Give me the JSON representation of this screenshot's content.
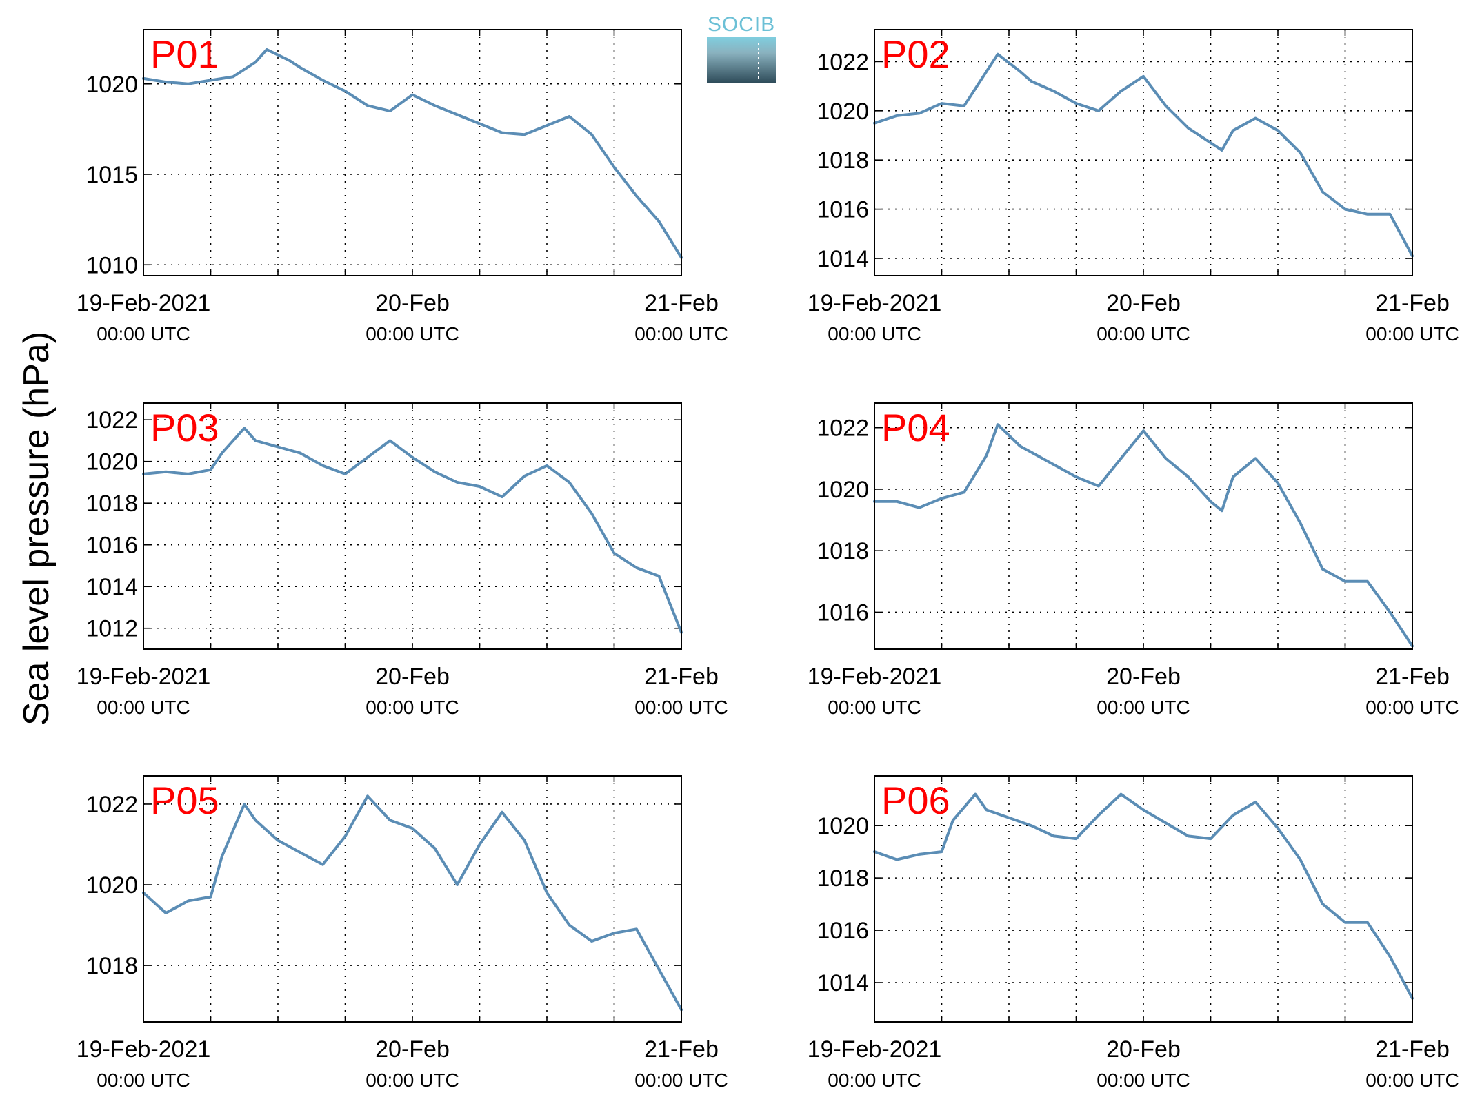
{
  "ylabel": "Sea level pressure (hPa)",
  "logo": {
    "text": "SOCIB"
  },
  "x_axis": {
    "ticks": [
      {
        "date": "19-Feb-2021",
        "time": "00:00 UTC"
      },
      {
        "date": "20-Feb",
        "time": "00:00 UTC"
      },
      {
        "date": "21-Feb",
        "time": "00:00 UTC"
      }
    ]
  },
  "colors": {
    "line": "#5b8db5",
    "title": "#ff0000"
  },
  "chart_data": [
    {
      "type": "line",
      "title": "P01",
      "ylim": [
        1009.4,
        1023.0
      ],
      "yticks": [
        1010,
        1015,
        1020
      ],
      "xlim": [
        "2021-02-19T00:00",
        "2021-02-21T00:00"
      ],
      "grid": true,
      "x": [
        "2021-02-19T00:00",
        "2021-02-19T02:00",
        "2021-02-19T04:00",
        "2021-02-19T06:00",
        "2021-02-19T08:00",
        "2021-02-19T10:00",
        "2021-02-19T11:00",
        "2021-02-19T13:00",
        "2021-02-19T14:00",
        "2021-02-19T16:00",
        "2021-02-19T18:00",
        "2021-02-19T20:00",
        "2021-02-19T22:00",
        "2021-02-20T00:00",
        "2021-02-20T02:00",
        "2021-02-20T04:00",
        "2021-02-20T06:00",
        "2021-02-20T08:00",
        "2021-02-20T10:00",
        "2021-02-20T12:00",
        "2021-02-20T14:00",
        "2021-02-20T16:00",
        "2021-02-20T18:00",
        "2021-02-20T20:00",
        "2021-02-20T22:00",
        "2021-02-21T00:00"
      ],
      "values": [
        1020.3,
        1020.1,
        1020.0,
        1020.2,
        1020.4,
        1021.2,
        1021.9,
        1021.3,
        1020.9,
        1020.2,
        1019.6,
        1018.8,
        1018.5,
        1019.4,
        1018.8,
        1018.3,
        1017.8,
        1017.3,
        1017.2,
        1017.7,
        1018.2,
        1017.2,
        1015.4,
        1013.8,
        1012.4,
        1010.4
      ]
    },
    {
      "type": "line",
      "title": "P02",
      "ylim": [
        1013.3,
        1023.3
      ],
      "yticks": [
        1014,
        1016,
        1018,
        1020,
        1022
      ],
      "xlim": [
        "2021-02-19T00:00",
        "2021-02-21T00:00"
      ],
      "grid": true,
      "x": [
        "2021-02-19T00:00",
        "2021-02-19T02:00",
        "2021-02-19T04:00",
        "2021-02-19T06:00",
        "2021-02-19T08:00",
        "2021-02-19T10:00",
        "2021-02-19T11:00",
        "2021-02-19T13:00",
        "2021-02-19T14:00",
        "2021-02-19T16:00",
        "2021-02-19T18:00",
        "2021-02-19T20:00",
        "2021-02-19T22:00",
        "2021-02-20T00:00",
        "2021-02-20T02:00",
        "2021-02-20T04:00",
        "2021-02-20T06:00",
        "2021-02-20T07:00",
        "2021-02-20T08:00",
        "2021-02-20T10:00",
        "2021-02-20T12:00",
        "2021-02-20T14:00",
        "2021-02-20T16:00",
        "2021-02-20T18:00",
        "2021-02-20T20:00",
        "2021-02-20T22:00",
        "2021-02-21T00:00"
      ],
      "values": [
        1019.5,
        1019.8,
        1019.9,
        1020.3,
        1020.2,
        1021.6,
        1022.3,
        1021.6,
        1021.2,
        1020.8,
        1020.3,
        1020.0,
        1020.8,
        1021.4,
        1020.2,
        1019.3,
        1018.7,
        1018.4,
        1019.2,
        1019.7,
        1019.2,
        1018.3,
        1016.7,
        1016.0,
        1015.8,
        1015.8,
        1014.1
      ]
    },
    {
      "type": "line",
      "title": "P03",
      "ylim": [
        1011.0,
        1022.8
      ],
      "yticks": [
        1012,
        1014,
        1016,
        1018,
        1020,
        1022
      ],
      "xlim": [
        "2021-02-19T00:00",
        "2021-02-21T00:00"
      ],
      "grid": true,
      "x": [
        "2021-02-19T00:00",
        "2021-02-19T02:00",
        "2021-02-19T04:00",
        "2021-02-19T06:00",
        "2021-02-19T07:00",
        "2021-02-19T09:00",
        "2021-02-19T10:00",
        "2021-02-19T12:00",
        "2021-02-19T14:00",
        "2021-02-19T16:00",
        "2021-02-19T18:00",
        "2021-02-19T20:00",
        "2021-02-19T22:00",
        "2021-02-20T00:00",
        "2021-02-20T02:00",
        "2021-02-20T04:00",
        "2021-02-20T06:00",
        "2021-02-20T08:00",
        "2021-02-20T10:00",
        "2021-02-20T12:00",
        "2021-02-20T14:00",
        "2021-02-20T16:00",
        "2021-02-20T18:00",
        "2021-02-20T20:00",
        "2021-02-20T22:00",
        "2021-02-21T00:00"
      ],
      "values": [
        1019.4,
        1019.5,
        1019.4,
        1019.6,
        1020.4,
        1021.6,
        1021.0,
        1020.7,
        1020.4,
        1019.8,
        1019.4,
        1020.2,
        1021.0,
        1020.2,
        1019.5,
        1019.0,
        1018.8,
        1018.3,
        1019.3,
        1019.8,
        1019.0,
        1017.5,
        1015.6,
        1014.9,
        1014.5,
        1011.8
      ]
    },
    {
      "type": "line",
      "title": "P04",
      "ylim": [
        1014.8,
        1022.8
      ],
      "yticks": [
        1016,
        1018,
        1020,
        1022
      ],
      "xlim": [
        "2021-02-19T00:00",
        "2021-02-21T00:00"
      ],
      "grid": true,
      "x": [
        "2021-02-19T00:00",
        "2021-02-19T02:00",
        "2021-02-19T04:00",
        "2021-02-19T06:00",
        "2021-02-19T08:00",
        "2021-02-19T10:00",
        "2021-02-19T11:00",
        "2021-02-19T13:00",
        "2021-02-19T14:00",
        "2021-02-19T16:00",
        "2021-02-19T18:00",
        "2021-02-19T20:00",
        "2021-02-19T22:00",
        "2021-02-20T00:00",
        "2021-02-20T02:00",
        "2021-02-20T04:00",
        "2021-02-20T06:00",
        "2021-02-20T07:00",
        "2021-02-20T08:00",
        "2021-02-20T10:00",
        "2021-02-20T12:00",
        "2021-02-20T14:00",
        "2021-02-20T16:00",
        "2021-02-20T18:00",
        "2021-02-20T20:00",
        "2021-02-20T22:00",
        "2021-02-21T00:00"
      ],
      "values": [
        1019.6,
        1019.6,
        1019.4,
        1019.7,
        1019.9,
        1021.1,
        1022.1,
        1021.4,
        1021.2,
        1020.8,
        1020.4,
        1020.1,
        1021.0,
        1021.9,
        1021.0,
        1020.4,
        1019.6,
        1019.3,
        1020.4,
        1021.0,
        1020.2,
        1018.9,
        1017.4,
        1017.0,
        1017.0,
        1016.0,
        1014.9
      ]
    },
    {
      "type": "line",
      "title": "P05",
      "ylim": [
        1016.6,
        1022.7
      ],
      "yticks": [
        1018,
        1020,
        1022
      ],
      "xlim": [
        "2021-02-19T00:00",
        "2021-02-21T00:00"
      ],
      "grid": true,
      "x": [
        "2021-02-19T00:00",
        "2021-02-19T02:00",
        "2021-02-19T04:00",
        "2021-02-19T06:00",
        "2021-02-19T07:00",
        "2021-02-19T09:00",
        "2021-02-19T10:00",
        "2021-02-19T12:00",
        "2021-02-19T14:00",
        "2021-02-19T16:00",
        "2021-02-19T18:00",
        "2021-02-19T20:00",
        "2021-02-19T22:00",
        "2021-02-20T00:00",
        "2021-02-20T02:00",
        "2021-02-20T04:00",
        "2021-02-20T06:00",
        "2021-02-20T08:00",
        "2021-02-20T10:00",
        "2021-02-20T12:00",
        "2021-02-20T14:00",
        "2021-02-20T16:00",
        "2021-02-20T18:00",
        "2021-02-20T20:00",
        "2021-02-20T22:00",
        "2021-02-21T00:00"
      ],
      "values": [
        1019.8,
        1019.3,
        1019.6,
        1019.7,
        1020.7,
        1022.0,
        1021.6,
        1021.1,
        1020.8,
        1020.5,
        1021.2,
        1022.2,
        1021.6,
        1021.4,
        1020.9,
        1020.0,
        1021.0,
        1021.8,
        1021.1,
        1019.8,
        1019.0,
        1018.6,
        1018.8,
        1018.9,
        1017.9,
        1016.9
      ]
    },
    {
      "type": "line",
      "title": "P06",
      "ylim": [
        1012.5,
        1021.9
      ],
      "yticks": [
        1014,
        1016,
        1018,
        1020
      ],
      "xlim": [
        "2021-02-19T00:00",
        "2021-02-21T00:00"
      ],
      "grid": true,
      "x": [
        "2021-02-19T00:00",
        "2021-02-19T02:00",
        "2021-02-19T04:00",
        "2021-02-19T06:00",
        "2021-02-19T07:00",
        "2021-02-19T09:00",
        "2021-02-19T10:00",
        "2021-02-19T12:00",
        "2021-02-19T14:00",
        "2021-02-19T16:00",
        "2021-02-19T18:00",
        "2021-02-19T20:00",
        "2021-02-19T22:00",
        "2021-02-20T00:00",
        "2021-02-20T02:00",
        "2021-02-20T04:00",
        "2021-02-20T06:00",
        "2021-02-20T08:00",
        "2021-02-20T10:00",
        "2021-02-20T12:00",
        "2021-02-20T14:00",
        "2021-02-20T16:00",
        "2021-02-20T18:00",
        "2021-02-20T20:00",
        "2021-02-20T22:00",
        "2021-02-21T00:00"
      ],
      "values": [
        1019.0,
        1018.7,
        1018.9,
        1019.0,
        1020.2,
        1021.2,
        1020.6,
        1020.3,
        1020.0,
        1019.6,
        1019.5,
        1020.4,
        1021.2,
        1020.6,
        1020.1,
        1019.6,
        1019.5,
        1020.4,
        1020.9,
        1019.9,
        1018.7,
        1017.0,
        1016.3,
        1016.3,
        1015.0,
        1013.4
      ]
    }
  ]
}
